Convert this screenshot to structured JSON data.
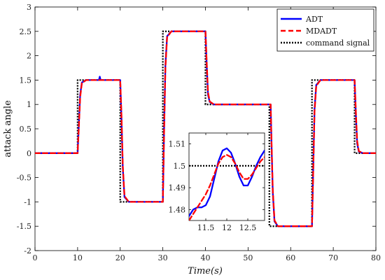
{
  "chart_data": [
    {
      "type": "line",
      "xlabel": "Time(s)",
      "ylabel": "attack angle",
      "xlim": [
        0,
        80
      ],
      "ylim": [
        -2,
        3
      ],
      "xticks": [
        "0",
        "10",
        "20",
        "30",
        "40",
        "50",
        "60",
        "70",
        "80"
      ],
      "yticks": [
        "-2",
        "-1.5",
        "-1",
        "-0.5",
        "0",
        "0.5",
        "1",
        "1.5",
        "2",
        "2.5",
        "3"
      ],
      "legend": {
        "placement": "top-right"
      },
      "series": [
        {
          "name": "ADT",
          "color": "#0000ff",
          "style": "solid",
          "x": [
            0,
            10,
            10.3,
            10.6,
            11,
            12,
            15,
            15.2,
            15.4,
            20,
            20.3,
            20.6,
            21,
            22,
            30,
            30.3,
            30.6,
            31,
            32,
            40,
            40.3,
            40.6,
            41,
            42,
            55.3,
            55.5,
            55.8,
            56.2,
            57,
            65,
            65.3,
            65.6,
            66,
            67,
            75,
            75.3,
            75.6,
            76,
            77,
            80
          ],
          "y": [
            0,
            0,
            0.6,
            1.2,
            1.45,
            1.5,
            1.5,
            1.57,
            1.5,
            1.5,
            0.7,
            -0.3,
            -0.9,
            -1.0,
            -1.0,
            0.5,
            1.8,
            2.4,
            2.5,
            2.5,
            1.8,
            1.2,
            1.05,
            1.0,
            1.0,
            0.2,
            -0.8,
            -1.4,
            -1.5,
            -1.5,
            -0.3,
            0.9,
            1.4,
            1.5,
            1.5,
            0.8,
            0.2,
            0.03,
            0,
            0
          ]
        },
        {
          "name": "MDADT",
          "color": "#ff0000",
          "style": "dashed",
          "x": [
            0,
            10,
            10.3,
            10.6,
            11,
            12,
            15,
            20,
            20.3,
            20.6,
            21,
            22,
            30,
            30.3,
            30.6,
            31,
            32,
            40,
            40.3,
            40.6,
            41,
            42,
            55.3,
            55.5,
            55.8,
            56.2,
            57,
            65,
            65.3,
            65.6,
            66,
            67,
            75,
            75.3,
            75.6,
            76,
            77,
            80
          ],
          "y": [
            0,
            0,
            0.55,
            1.15,
            1.44,
            1.5,
            1.5,
            1.5,
            0.75,
            -0.25,
            -0.88,
            -1.0,
            -1.0,
            0.45,
            1.75,
            2.38,
            2.5,
            2.5,
            1.85,
            1.25,
            1.06,
            1.0,
            1.0,
            0.25,
            -0.75,
            -1.38,
            -1.5,
            -1.5,
            -0.35,
            0.85,
            1.38,
            1.5,
            1.5,
            0.85,
            0.25,
            0.04,
            0,
            0
          ]
        },
        {
          "name": "command signal",
          "color": "#000000",
          "style": "dotted",
          "x": [
            0,
            10,
            10,
            20,
            20,
            30,
            30,
            40,
            40,
            55,
            55,
            65,
            65,
            75,
            75,
            80
          ],
          "y": [
            0,
            0,
            1.5,
            1.5,
            -1,
            -1,
            2.5,
            2.5,
            1,
            1,
            -1.5,
            -1.5,
            1.5,
            1.5,
            0,
            0
          ]
        }
      ]
    },
    {
      "type": "line",
      "xlim": [
        11.1,
        12.9
      ],
      "ylim": [
        1.475,
        1.515
      ],
      "xticks": [
        "11.5",
        "12",
        "12.5"
      ],
      "yticks": [
        "1.48",
        "1.49",
        "1.5",
        "1.51"
      ],
      "series": [
        {
          "name": "ADT",
          "color": "#0000ff",
          "style": "solid",
          "x": [
            11.1,
            11.2,
            11.3,
            11.4,
            11.5,
            11.6,
            11.7,
            11.8,
            11.9,
            12.0,
            12.1,
            12.2,
            12.3,
            12.4,
            12.5,
            12.6,
            12.7,
            12.8,
            12.9
          ],
          "y": [
            1.477,
            1.48,
            1.481,
            1.481,
            1.482,
            1.486,
            1.494,
            1.502,
            1.507,
            1.508,
            1.506,
            1.501,
            1.495,
            1.491,
            1.491,
            1.495,
            1.5,
            1.504,
            1.507
          ]
        },
        {
          "name": "MDADT",
          "color": "#ff0000",
          "style": "dashed",
          "x": [
            11.1,
            11.2,
            11.3,
            11.4,
            11.5,
            11.6,
            11.7,
            11.8,
            11.9,
            12.0,
            12.1,
            12.2,
            12.3,
            12.4,
            12.5,
            12.6,
            12.7,
            12.8,
            12.9
          ],
          "y": [
            1.475,
            1.478,
            1.481,
            1.484,
            1.487,
            1.491,
            1.496,
            1.501,
            1.504,
            1.505,
            1.504,
            1.501,
            1.497,
            1.494,
            1.494,
            1.496,
            1.499,
            1.502,
            1.504
          ]
        },
        {
          "name": "command signal",
          "color": "#000000",
          "style": "dotted",
          "x": [
            11.1,
            12.9
          ],
          "y": [
            1.5,
            1.5
          ]
        }
      ]
    }
  ]
}
